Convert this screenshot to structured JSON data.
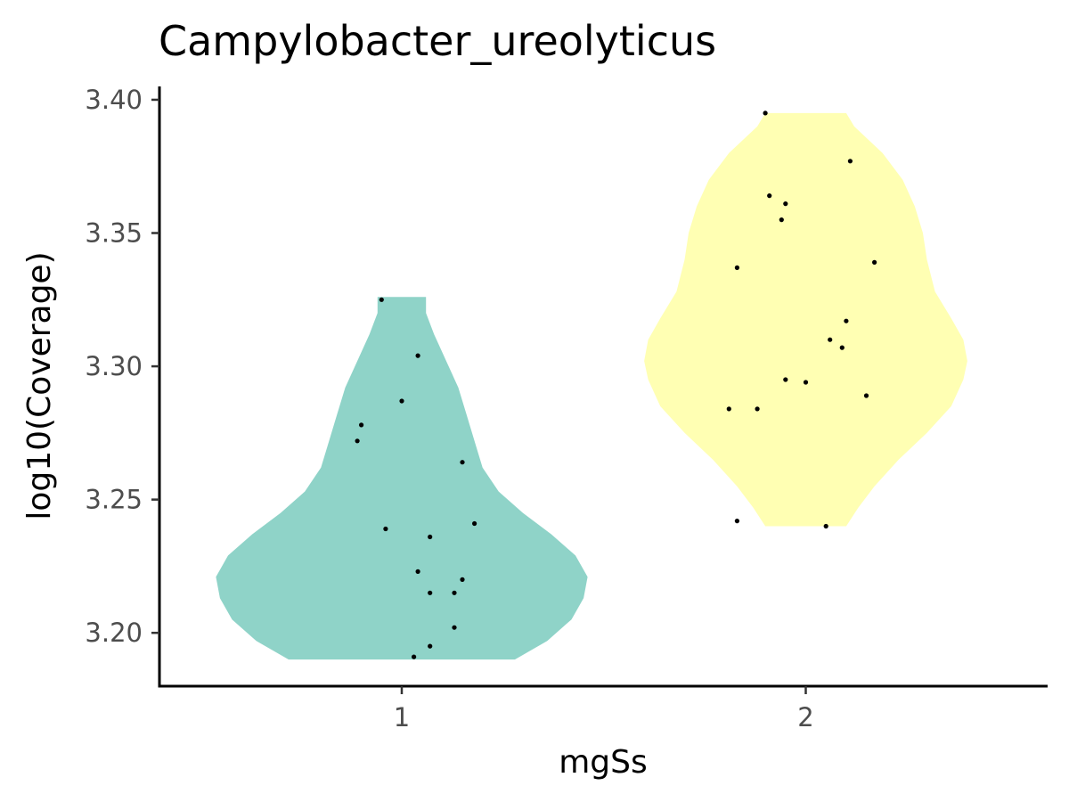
{
  "chart_data": {
    "type": "violin",
    "title": "Campylobacter_ureolyticus",
    "xlabel": "mgSs",
    "ylabel": "log10(Coverage)",
    "categories": [
      "1",
      "2"
    ],
    "ylim": [
      3.18,
      3.405
    ],
    "yticks": [
      "3.20",
      "3.25",
      "3.30",
      "3.35",
      "3.40"
    ],
    "grid": false,
    "legend": "none",
    "series": [
      {
        "category": "1",
        "color": "#8fd3c8",
        "range": [
          3.19,
          3.326
        ],
        "density": [
          [
            3.19,
            0.28
          ],
          [
            3.197,
            0.36
          ],
          [
            3.205,
            0.42
          ],
          [
            3.213,
            0.45
          ],
          [
            3.221,
            0.46
          ],
          [
            3.229,
            0.43
          ],
          [
            3.237,
            0.37
          ],
          [
            3.245,
            0.3
          ],
          [
            3.253,
            0.24
          ],
          [
            3.262,
            0.2
          ],
          [
            3.272,
            0.18
          ],
          [
            3.282,
            0.16
          ],
          [
            3.292,
            0.14
          ],
          [
            3.302,
            0.11
          ],
          [
            3.312,
            0.08
          ],
          [
            3.32,
            0.06
          ],
          [
            3.326,
            0.06
          ]
        ],
        "points": [
          [
            -0.05,
            3.325
          ],
          [
            0.04,
            3.304
          ],
          [
            0.0,
            3.287
          ],
          [
            -0.1,
            3.278
          ],
          [
            -0.11,
            3.272
          ],
          [
            0.15,
            3.264
          ],
          [
            0.18,
            3.241
          ],
          [
            -0.04,
            3.239
          ],
          [
            0.07,
            3.236
          ],
          [
            0.04,
            3.223
          ],
          [
            0.15,
            3.22
          ],
          [
            0.07,
            3.215
          ],
          [
            0.13,
            3.215
          ],
          [
            0.13,
            3.202
          ],
          [
            0.07,
            3.195
          ],
          [
            0.03,
            3.191
          ]
        ]
      },
      {
        "category": "2",
        "color": "#ffffb3",
        "range": [
          3.24,
          3.395
        ],
        "density": [
          [
            3.24,
            0.1
          ],
          [
            3.247,
            0.13
          ],
          [
            3.255,
            0.17
          ],
          [
            3.265,
            0.23
          ],
          [
            3.275,
            0.3
          ],
          [
            3.285,
            0.36
          ],
          [
            3.295,
            0.39
          ],
          [
            3.302,
            0.4
          ],
          [
            3.31,
            0.39
          ],
          [
            3.318,
            0.36
          ],
          [
            3.328,
            0.32
          ],
          [
            3.34,
            0.3
          ],
          [
            3.35,
            0.29
          ],
          [
            3.36,
            0.27
          ],
          [
            3.37,
            0.24
          ],
          [
            3.38,
            0.19
          ],
          [
            3.39,
            0.12
          ],
          [
            3.395,
            0.1
          ]
        ],
        "points": [
          [
            -0.1,
            3.395
          ],
          [
            0.11,
            3.377
          ],
          [
            -0.09,
            3.364
          ],
          [
            -0.05,
            3.361
          ],
          [
            -0.06,
            3.355
          ],
          [
            0.17,
            3.339
          ],
          [
            -0.17,
            3.337
          ],
          [
            0.1,
            3.317
          ],
          [
            0.06,
            3.31
          ],
          [
            0.09,
            3.307
          ],
          [
            -0.05,
            3.295
          ],
          [
            0.0,
            3.294
          ],
          [
            0.15,
            3.289
          ],
          [
            -0.19,
            3.284
          ],
          [
            -0.12,
            3.284
          ],
          [
            -0.17,
            3.242
          ],
          [
            0.05,
            3.24
          ]
        ]
      }
    ]
  }
}
